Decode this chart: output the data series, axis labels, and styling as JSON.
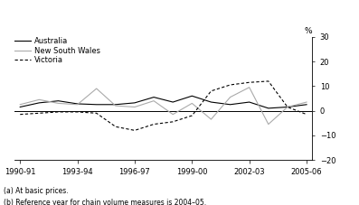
{
  "x_labels": [
    "1990-91",
    "1993-94",
    "1996-97",
    "1999-00",
    "2002-03",
    "2005-06"
  ],
  "australia": [
    1.5,
    3.2,
    4.0,
    2.8,
    2.5,
    2.5,
    3.2,
    5.5,
    3.5,
    6.0,
    3.5,
    2.5,
    3.5,
    1.0,
    1.5,
    2.5
  ],
  "nsw": [
    2.5,
    4.5,
    3.0,
    2.5,
    9.0,
    2.0,
    1.5,
    4.0,
    -1.5,
    3.0,
    -3.5,
    5.5,
    9.5,
    -5.5,
    1.5,
    3.5
  ],
  "victoria": [
    -1.5,
    -1.0,
    -0.5,
    -0.5,
    -1.0,
    -6.5,
    -8.0,
    -5.5,
    -4.5,
    -2.0,
    8.0,
    10.5,
    11.5,
    12.0,
    1.5,
    -1.5
  ],
  "australia_color": "#000000",
  "nsw_color": "#aaaaaa",
  "victoria_color": "#000000",
  "ylim": [
    -20,
    30
  ],
  "yticks": [
    -20,
    -10,
    0,
    10,
    20,
    30
  ],
  "x_ticks_pos": [
    0,
    3,
    6,
    9,
    12,
    15
  ],
  "footnote1": "(a) At basic prices.",
  "footnote2": "(b) Reference year for chain volume measures is 2004–05.",
  "legend_labels": [
    "Australia",
    "New South Wales",
    "Victoria"
  ],
  "ylabel": "%"
}
